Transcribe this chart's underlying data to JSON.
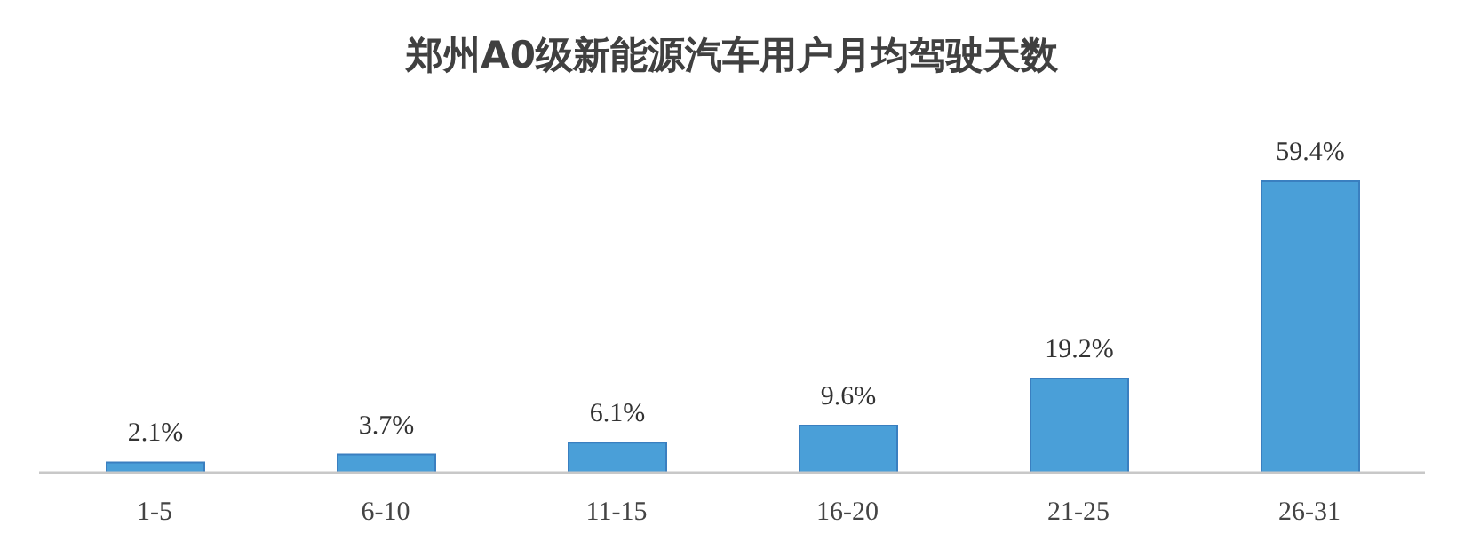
{
  "chart_data": {
    "type": "bar",
    "title": "郑州A0级新能源汽车用户月均驾驶天数",
    "categories": [
      "1-5",
      "6-10",
      "11-15",
      "16-20",
      "21-25",
      "26-31"
    ],
    "values": [
      2.1,
      3.7,
      6.1,
      9.6,
      19.2,
      59.4
    ],
    "value_labels": [
      "2.1%",
      "3.7%",
      "6.1%",
      "9.6%",
      "19.2%",
      "59.4%"
    ],
    "color": "#4a9fd8"
  }
}
